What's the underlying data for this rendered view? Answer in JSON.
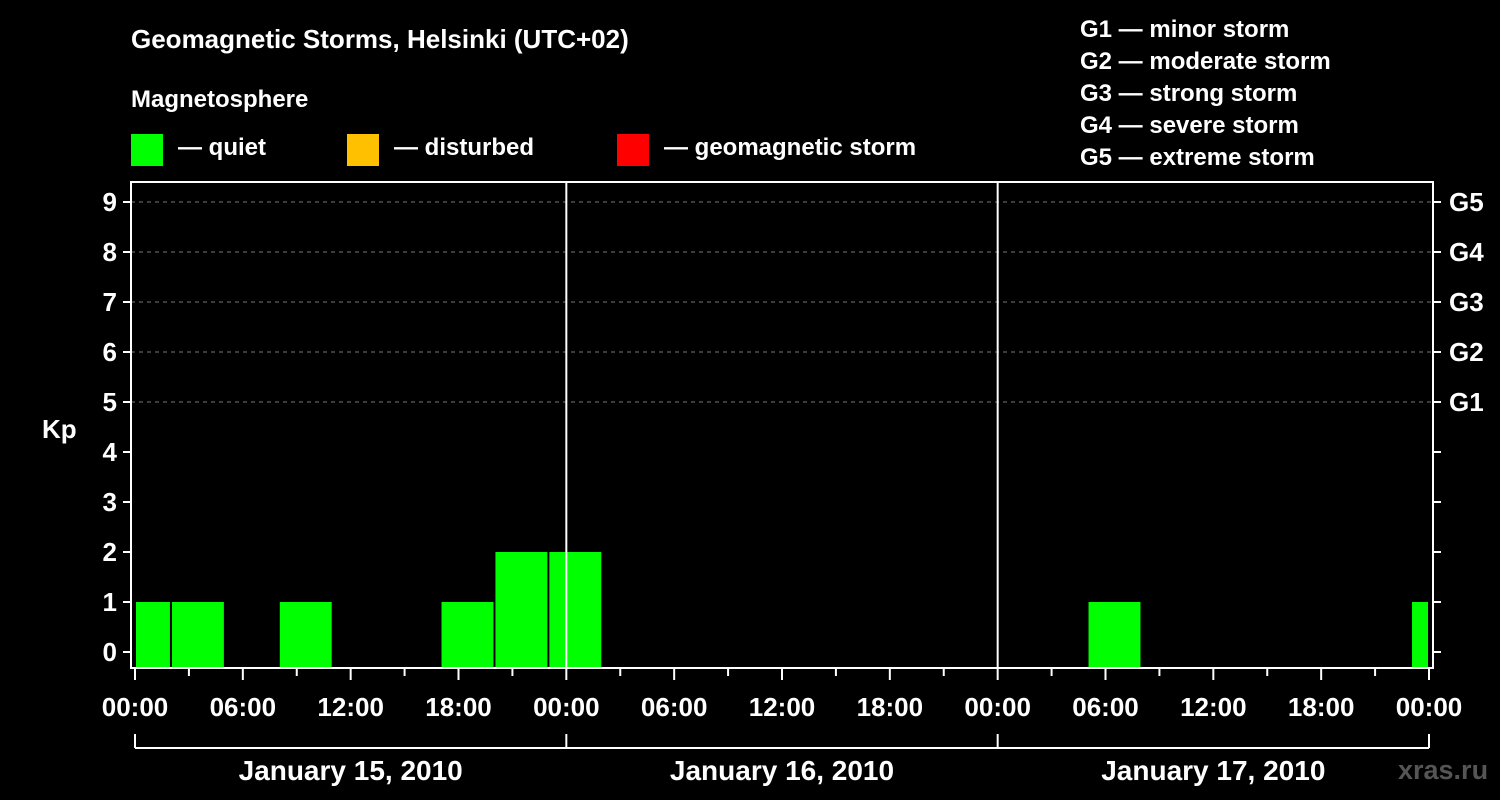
{
  "title": "Geomagnetic Storms, Helsinki (UTC+02)",
  "magnetosphere_label": "Magnetosphere",
  "legend": [
    {
      "label": "— quiet",
      "color": "#00ff00"
    },
    {
      "label": "— disturbed",
      "color": "#ffc000"
    },
    {
      "label": "— geomagnetic storm",
      "color": "#ff0000"
    }
  ],
  "g_legend": [
    "G1 — minor storm",
    "G2 — moderate storm",
    "G3 — strong storm",
    "G4 — severe storm",
    "G5 — extreme storm"
  ],
  "watermark": "xras.ru",
  "chart_data": {
    "type": "bar",
    "title": "Geomagnetic Storms, Helsinki (UTC+02)",
    "ylabel": "Kp",
    "xlabel": "",
    "ylim": [
      0,
      9
    ],
    "y_ticks": [
      "0",
      "1",
      "2",
      "3",
      "4",
      "5",
      "6",
      "7",
      "8",
      "9"
    ],
    "right_ticks": [
      {
        "kp": 5,
        "label": "G1"
      },
      {
        "kp": 6,
        "label": "G2"
      },
      {
        "kp": 7,
        "label": "G3"
      },
      {
        "kp": 8,
        "label": "G4"
      },
      {
        "kp": 9,
        "label": "G5"
      }
    ],
    "x_range_hours": [
      0,
      72
    ],
    "x_tick_labels": [
      "00:00",
      "06:00",
      "12:00",
      "18:00",
      "00:00",
      "06:00",
      "12:00",
      "18:00",
      "00:00",
      "06:00",
      "12:00",
      "18:00",
      "00:00"
    ],
    "days": [
      "January 15, 2010",
      "January 16, 2010",
      "January 17, 2010"
    ],
    "grid": "dashed horizontal",
    "bar_color": "#00ff00",
    "bars": [
      {
        "start_h": 0,
        "end_h": 2,
        "kp": 1
      },
      {
        "start_h": 2,
        "end_h": 5,
        "kp": 1
      },
      {
        "start_h": 8,
        "end_h": 11,
        "kp": 1
      },
      {
        "start_h": 17,
        "end_h": 20,
        "kp": 1
      },
      {
        "start_h": 20,
        "end_h": 23,
        "kp": 2
      },
      {
        "start_h": 23,
        "end_h": 26,
        "kp": 2
      },
      {
        "start_h": 53,
        "end_h": 56,
        "kp": 1
      },
      {
        "start_h": 71,
        "end_h": 72,
        "kp": 1
      }
    ]
  }
}
